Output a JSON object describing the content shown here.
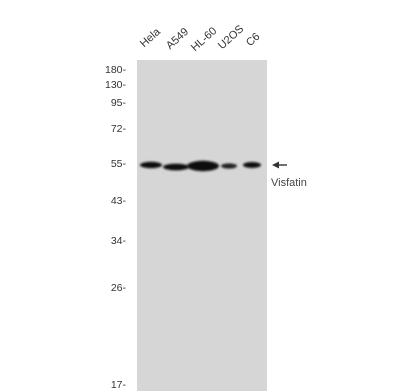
{
  "lane_labels": [
    "Hela",
    "A549",
    "HL-60",
    "U2OS",
    "C6"
  ],
  "mw_markers": [
    "180-",
    "130-",
    "95-",
    "72-",
    "55-",
    "43-",
    "34-",
    "26-",
    "17-"
  ],
  "target": {
    "label": "Visfatin",
    "arrow": "arrow-left-icon"
  },
  "bands": {
    "color": "#111111",
    "membrane_color": "#d6d6d6"
  }
}
